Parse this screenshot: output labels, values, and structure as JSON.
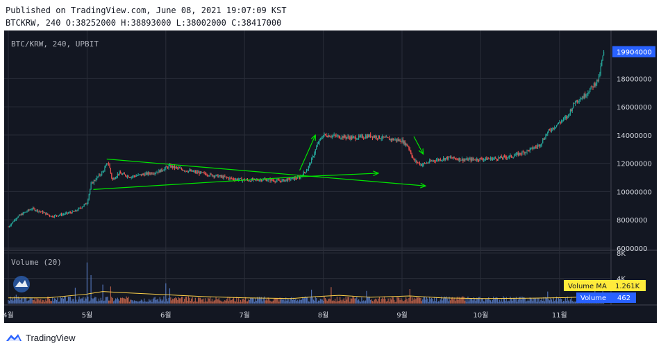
{
  "header": {
    "published": "Published on TradingView.com, June 08, 2021 19:07:09 KST",
    "ohlc": "BTCKRW, 240 O:38252000 H:38893000 L:38002000 C:38417000"
  },
  "footer": {
    "brand": "TradingView"
  },
  "colors": {
    "background": "#131722",
    "grid": "#2a2e39",
    "candle_up": "#26a69a",
    "candle_down": "#ef5350",
    "trendline": "#00e400",
    "volume_ma": "#ffd24a",
    "volume_ma_badge": "#ffeb3b",
    "price_badge": "#2962ff"
  },
  "chart_data": [
    {
      "type": "candlestick",
      "title": "BTC/KRW, 240, UPBIT",
      "xlabel": "",
      "ylabel": "",
      "x_ticks": [
        "4월",
        "5월",
        "6월",
        "7월",
        "8월",
        "9월",
        "10월",
        "11월"
      ],
      "y_ticks": [
        6000000,
        8000000,
        10000000,
        12000000,
        14000000,
        16000000,
        18000000
      ],
      "ylim": [
        5900000,
        21400000
      ],
      "last_price_label": "19904000",
      "last_price": 19904000,
      "grid": true,
      "x_month_index": [
        0,
        1,
        2,
        3,
        4,
        5,
        6,
        7,
        7.57
      ],
      "close_path": [
        [
          0.0,
          7500000
        ],
        [
          0.1,
          8150000
        ],
        [
          0.2,
          8500000
        ],
        [
          0.3,
          8800000
        ],
        [
          0.45,
          8500000
        ],
        [
          0.55,
          8250000
        ],
        [
          0.7,
          8400000
        ],
        [
          0.85,
          8600000
        ],
        [
          1.0,
          9200000
        ],
        [
          1.05,
          10500000
        ],
        [
          1.12,
          10950000
        ],
        [
          1.2,
          11400000
        ],
        [
          1.27,
          12100000
        ],
        [
          1.32,
          10800000
        ],
        [
          1.4,
          11300000
        ],
        [
          1.55,
          11050000
        ],
        [
          1.7,
          11200000
        ],
        [
          1.9,
          11400000
        ],
        [
          2.05,
          11800000
        ],
        [
          2.25,
          11500000
        ],
        [
          2.45,
          11300000
        ],
        [
          2.65,
          11100000
        ],
        [
          2.85,
          10900000
        ],
        [
          3.05,
          10800000
        ],
        [
          3.25,
          10850000
        ],
        [
          3.45,
          10750000
        ],
        [
          3.6,
          10900000
        ],
        [
          3.7,
          11000000
        ],
        [
          3.8,
          11600000
        ],
        [
          3.87,
          12500000
        ],
        [
          3.93,
          13400000
        ],
        [
          4.0,
          14000000
        ],
        [
          4.2,
          13900000
        ],
        [
          4.4,
          13800000
        ],
        [
          4.6,
          13950000
        ],
        [
          4.8,
          13750000
        ],
        [
          5.0,
          13600000
        ],
        [
          5.08,
          13200000
        ],
        [
          5.15,
          12200000
        ],
        [
          5.25,
          11900000
        ],
        [
          5.4,
          12200000
        ],
        [
          5.6,
          12400000
        ],
        [
          5.8,
          12250000
        ],
        [
          6.0,
          12300000
        ],
        [
          6.2,
          12350000
        ],
        [
          6.4,
          12500000
        ],
        [
          6.6,
          12900000
        ],
        [
          6.75,
          13300000
        ],
        [
          6.85,
          14200000
        ],
        [
          7.0,
          14900000
        ],
        [
          7.1,
          15300000
        ],
        [
          7.2,
          16400000
        ],
        [
          7.3,
          16700000
        ],
        [
          7.4,
          17300000
        ],
        [
          7.5,
          18000000
        ],
        [
          7.55,
          19600000
        ],
        [
          7.57,
          19904000
        ]
      ],
      "trendlines": [
        {
          "name": "upper-resistance",
          "points": [
            [
              1.25,
              12300000
            ],
            [
              5.3,
              10400000
            ]
          ],
          "arrow": true
        },
        {
          "name": "lower-support",
          "points": [
            [
              1.08,
              10150000
            ],
            [
              3.7,
              11050000
            ]
          ],
          "arrow": false
        },
        {
          "name": "support-extension",
          "points": [
            [
              3.7,
              11050000
            ],
            [
              4.7,
              11300000
            ]
          ],
          "arrow": true
        },
        {
          "name": "breakout-arrow",
          "points": [
            [
              3.7,
              11500000
            ],
            [
              3.9,
              14000000
            ]
          ],
          "arrow": true
        },
        {
          "name": "drop-arrow",
          "points": [
            [
              5.15,
              13900000
            ],
            [
              5.27,
              12650000
            ]
          ],
          "arrow": true
        }
      ]
    },
    {
      "type": "bar",
      "title": "Volume (20)",
      "y_ticks_labels": [
        "8K",
        "4K"
      ],
      "y_ticks": [
        8000,
        4000
      ],
      "ylim": [
        0,
        8000
      ],
      "volume_ma_label": "Volume MA",
      "volume_ma_value": "1.261K",
      "volume_label": "Volume",
      "volume_value": "462",
      "volume_spikes": [
        [
          0.1,
          1400
        ],
        [
          0.85,
          2500
        ],
        [
          1.0,
          6500
        ],
        [
          1.05,
          4500
        ],
        [
          1.2,
          3000
        ],
        [
          1.3,
          2700
        ],
        [
          2.0,
          3200
        ],
        [
          2.05,
          2400
        ],
        [
          3.85,
          2200
        ],
        [
          4.1,
          2600
        ],
        [
          4.55,
          2000
        ],
        [
          5.1,
          2300
        ],
        [
          6.85,
          1900
        ],
        [
          7.45,
          2400
        ],
        [
          7.55,
          3400
        ]
      ],
      "volume_ma_path": [
        [
          0.0,
          900
        ],
        [
          0.5,
          900
        ],
        [
          1.0,
          1500
        ],
        [
          1.2,
          1900
        ],
        [
          1.5,
          1700
        ],
        [
          2.0,
          1400
        ],
        [
          2.5,
          1100
        ],
        [
          3.0,
          900
        ],
        [
          3.6,
          800
        ],
        [
          3.9,
          1100
        ],
        [
          4.2,
          1300
        ],
        [
          4.6,
          1000
        ],
        [
          5.1,
          1200
        ],
        [
          5.5,
          900
        ],
        [
          6.0,
          800
        ],
        [
          6.6,
          850
        ],
        [
          7.1,
          950
        ],
        [
          7.4,
          1100
        ],
        [
          7.57,
          1261
        ]
      ]
    }
  ]
}
